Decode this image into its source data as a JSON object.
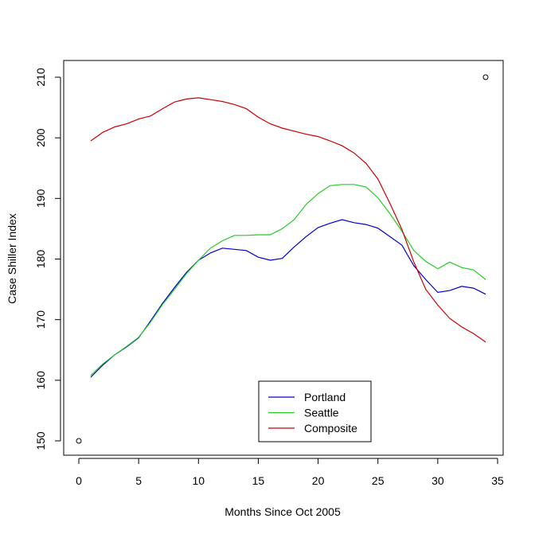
{
  "chart_data": {
    "type": "line",
    "title": "",
    "xlabel": "Months Since Oct 2005",
    "ylabel": "Case Shiller Index",
    "xlim": [
      0,
      35
    ],
    "ylim": [
      150,
      210
    ],
    "xticks": [
      0,
      5,
      10,
      15,
      20,
      25,
      30,
      35
    ],
    "yticks": [
      150,
      160,
      170,
      180,
      190,
      200,
      210
    ],
    "x": [
      1,
      2,
      3,
      4,
      5,
      6,
      7,
      8,
      9,
      10,
      11,
      12,
      13,
      14,
      15,
      16,
      17,
      18,
      19,
      20,
      21,
      22,
      23,
      24,
      25,
      26,
      27,
      28,
      29,
      30,
      31,
      32,
      33,
      34
    ],
    "series": [
      {
        "name": "Portland",
        "color": "#0000cd",
        "values": [
          160.5,
          162.5,
          164.2,
          165.5,
          167.0,
          169.8,
          172.7,
          175.3,
          177.8,
          179.8,
          181.0,
          181.8,
          181.6,
          181.4,
          180.3,
          179.8,
          180.1,
          182.0,
          183.7,
          185.2,
          185.9,
          186.5,
          186.0,
          185.7,
          185.1,
          183.7,
          182.3,
          178.9,
          176.6,
          174.5,
          174.8,
          175.5,
          175.2,
          174.2
        ]
      },
      {
        "name": "Seattle",
        "color": "#22cc22",
        "values": [
          160.8,
          162.7,
          164.2,
          165.6,
          167.1,
          169.6,
          172.5,
          175.0,
          177.6,
          179.8,
          181.8,
          183.0,
          183.9,
          183.9,
          184.0,
          184.0,
          185.0,
          186.5,
          189.0,
          190.8,
          192.1,
          192.3,
          192.3,
          191.9,
          190.1,
          187.5,
          184.6,
          181.4,
          179.6,
          178.4,
          179.5,
          178.6,
          178.2,
          176.6
        ]
      },
      {
        "name": "Composite",
        "color": "#cc0000",
        "values": [
          199.5,
          200.9,
          201.8,
          202.3,
          203.1,
          203.6,
          204.8,
          205.9,
          206.4,
          206.6,
          206.3,
          206.0,
          205.5,
          204.8,
          203.4,
          202.3,
          201.6,
          201.1,
          200.6,
          200.2,
          199.5,
          198.7,
          197.5,
          195.8,
          193.2,
          189.2,
          184.9,
          179.5,
          175.0,
          172.4,
          170.2,
          168.8,
          167.7,
          166.3
        ]
      }
    ],
    "points": [
      {
        "x": 0,
        "y": 150
      },
      {
        "x": 34,
        "y": 210
      }
    ],
    "legend": {
      "position": "bottom-center",
      "entries": [
        "Portland",
        "Seattle",
        "Composite"
      ]
    },
    "grid": false
  }
}
